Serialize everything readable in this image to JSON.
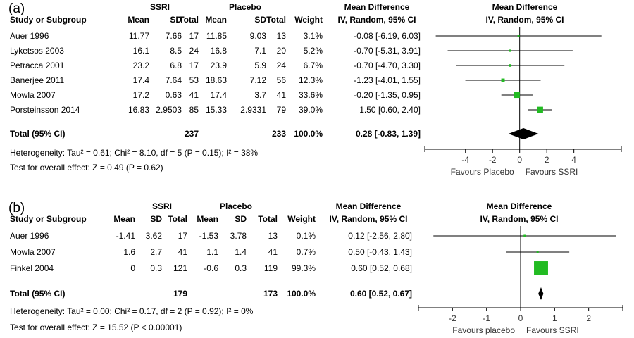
{
  "chart_data": [
    {
      "type": "forest",
      "panel_label": "(a)",
      "column_headers": {
        "study": "Study or Subgroup",
        "group1": "SSRI",
        "group2": "Placebo",
        "mean": "Mean",
        "sd": "SD",
        "total": "Total",
        "weight": "Weight",
        "effect_title": "Mean Difference",
        "effect_method": "IV, Random, 95% CI"
      },
      "studies": [
        {
          "name": "Auer 1996",
          "m1": "11.77",
          "sd1": "7.66",
          "n1": "17",
          "m2": "11.85",
          "sd2": "9.03",
          "n2": "13",
          "weight": "3.1%",
          "ci_text": "-0.08 [-6.19, 6.03]",
          "est": -0.08,
          "lo": -6.19,
          "hi": 6.03,
          "w": 3.1
        },
        {
          "name": "Lyketsos 2003",
          "m1": "16.1",
          "sd1": "8.5",
          "n1": "24",
          "m2": "16.8",
          "sd2": "7.1",
          "n2": "20",
          "weight": "5.2%",
          "ci_text": "-0.70 [-5.31, 3.91]",
          "est": -0.7,
          "lo": -5.31,
          "hi": 3.91,
          "w": 5.2
        },
        {
          "name": "Petracca 2001",
          "m1": "23.2",
          "sd1": "6.8",
          "n1": "17",
          "m2": "23.9",
          "sd2": "5.9",
          "n2": "24",
          "weight": "6.7%",
          "ci_text": "-0.70 [-4.70, 3.30]",
          "est": -0.7,
          "lo": -4.7,
          "hi": 3.3,
          "w": 6.7
        },
        {
          "name": "Banerjee 2011",
          "m1": "17.4",
          "sd1": "7.64",
          "n1": "53",
          "m2": "18.63",
          "sd2": "7.12",
          "n2": "56",
          "weight": "12.3%",
          "ci_text": "-1.23 [-4.01, 1.55]",
          "est": -1.23,
          "lo": -4.01,
          "hi": 1.55,
          "w": 12.3
        },
        {
          "name": "Mowla 2007",
          "m1": "17.2",
          "sd1": "0.63",
          "n1": "41",
          "m2": "17.4",
          "sd2": "3.7",
          "n2": "41",
          "weight": "33.6%",
          "ci_text": "-0.20 [-1.35, 0.95]",
          "est": -0.2,
          "lo": -1.35,
          "hi": 0.95,
          "w": 33.6
        },
        {
          "name": "Porsteinsson 2014",
          "m1": "16.83",
          "sd1": "2.9503",
          "n1": "85",
          "m2": "15.33",
          "sd2": "2.9331",
          "n2": "79",
          "weight": "39.0%",
          "ci_text": "1.50 [0.60, 2.40]",
          "est": 1.5,
          "lo": 0.6,
          "hi": 2.4,
          "w": 39.0
        }
      ],
      "total": {
        "label": "Total (95% CI)",
        "n1": "237",
        "n2": "233",
        "weight": "100.0%",
        "ci_text": "0.28 [-0.83, 1.39]",
        "est": 0.28,
        "lo": -0.83,
        "hi": 1.39
      },
      "heterogeneity": "Heterogeneity: Tau² = 0.61; Chi² = 8.10, df = 5 (P = 0.15); I² = 38%",
      "overall_effect": "Test for overall effect: Z = 0.49 (P = 0.62)",
      "x_ticks": [
        -4,
        -2,
        0,
        2,
        4
      ],
      "x_tick_labels": [
        "-4",
        "-2",
        "0",
        "2",
        "4"
      ],
      "xlim": [
        -7,
        7.5
      ],
      "favours_left": "Favours Placebo",
      "favours_right": "Favours SSRI"
    },
    {
      "type": "forest",
      "panel_label": "(b)",
      "column_headers": {
        "study": "Study or Subgroup",
        "group1": "SSRI",
        "group2": "Placebo",
        "mean": "Mean",
        "sd": "SD",
        "total": "Total",
        "weight": "Weight",
        "effect_title": "Mean Difference",
        "effect_method": "IV, Random, 95% CI"
      },
      "studies": [
        {
          "name": "Auer 1996",
          "m1": "-1.41",
          "sd1": "3.62",
          "n1": "17",
          "m2": "-1.53",
          "sd2": "3.78",
          "n2": "13",
          "weight": "0.1%",
          "ci_text": "0.12 [-2.56, 2.80]",
          "est": 0.12,
          "lo": -2.56,
          "hi": 2.8,
          "w": 0.1
        },
        {
          "name": "Mowla 2007",
          "m1": "1.6",
          "sd1": "2.7",
          "n1": "41",
          "m2": "1.1",
          "sd2": "1.4",
          "n2": "41",
          "weight": "0.7%",
          "ci_text": "0.50 [-0.43, 1.43]",
          "est": 0.5,
          "lo": -0.43,
          "hi": 1.43,
          "w": 0.7
        },
        {
          "name": "Finkel 2004",
          "m1": "0",
          "sd1": "0.3",
          "n1": "121",
          "m2": "-0.6",
          "sd2": "0.3",
          "n2": "119",
          "weight": "99.3%",
          "ci_text": "0.60 [0.52, 0.68]",
          "est": 0.6,
          "lo": 0.52,
          "hi": 0.68,
          "w": 99.3
        }
      ],
      "total": {
        "label": "Total (95% CI)",
        "n1": "179",
        "n2": "173",
        "weight": "100.0%",
        "ci_text": "0.60 [0.52, 0.67]",
        "est": 0.6,
        "lo": 0.52,
        "hi": 0.67
      },
      "heterogeneity": "Heterogeneity: Tau² = 0.00; Chi² = 0.17, df = 2 (P = 0.92); I² = 0%",
      "overall_effect": "Test for overall effect: Z = 15.52 (P < 0.00001)",
      "x_ticks": [
        -2,
        -1,
        0,
        1,
        2
      ],
      "x_tick_labels": [
        "-2",
        "-1",
        "0",
        "1",
        "2"
      ],
      "xlim": [
        -3,
        3
      ],
      "favours_left": "Favours placebo",
      "favours_right": "Favours SSRI"
    }
  ],
  "colors": {
    "square": "#22bb22",
    "diamond": "#000000",
    "line": "#000000"
  }
}
